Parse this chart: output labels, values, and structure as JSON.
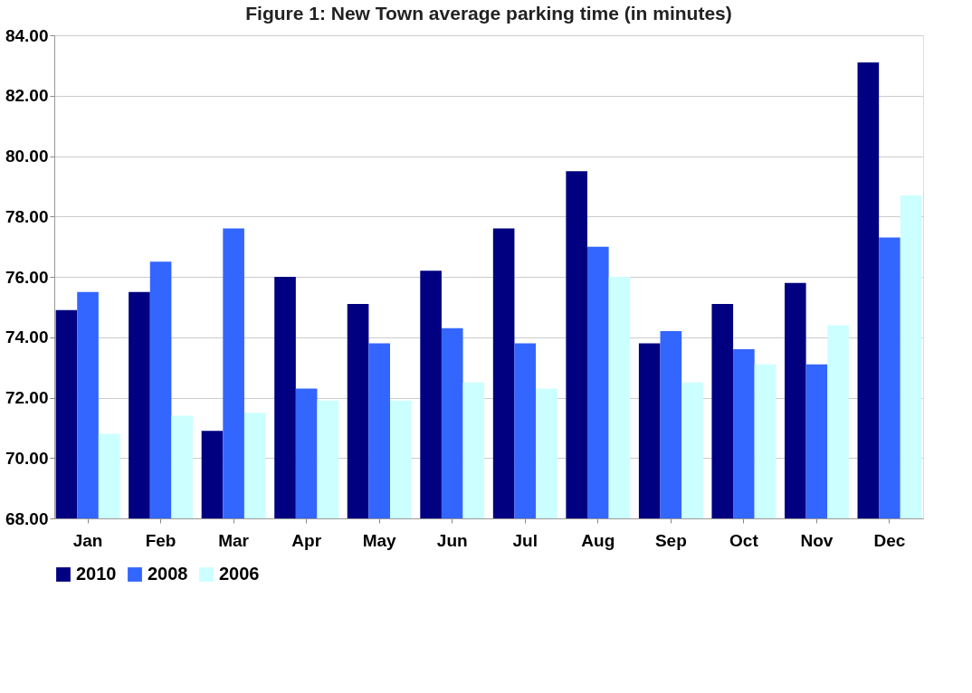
{
  "chart_data": {
    "type": "bar",
    "title": "Figure 1: New Town average parking time (in minutes)",
    "categories": [
      "Jan",
      "Feb",
      "Mar",
      "Apr",
      "May",
      "Jun",
      "Jul",
      "Aug",
      "Sep",
      "Oct",
      "Nov",
      "Dec"
    ],
    "series": [
      {
        "name": "2010",
        "color": "#000080",
        "values": [
          74.9,
          75.5,
          70.9,
          76.0,
          75.1,
          76.2,
          77.6,
          79.5,
          73.8,
          75.1,
          75.8,
          83.1
        ]
      },
      {
        "name": "2008",
        "color": "#3366ff",
        "values": [
          75.5,
          76.5,
          77.6,
          72.3,
          73.8,
          74.3,
          73.8,
          77.0,
          74.2,
          73.6,
          73.1,
          77.3
        ]
      },
      {
        "name": "2006",
        "color": "#ccffff",
        "values": [
          70.8,
          71.4,
          71.5,
          71.9,
          71.9,
          72.5,
          72.3,
          76.0,
          72.5,
          73.1,
          74.4,
          78.7
        ]
      }
    ],
    "ylim": [
      68,
      84
    ],
    "yticks": [
      {
        "value": 68,
        "label": "68.00"
      },
      {
        "value": 70,
        "label": "70.00"
      },
      {
        "value": 72,
        "label": "72.00"
      },
      {
        "value": 74,
        "label": "74.00"
      },
      {
        "value": 76,
        "label": "76.00"
      },
      {
        "value": 78,
        "label": "78.00"
      },
      {
        "value": 80,
        "label": "80.00"
      },
      {
        "value": 82,
        "label": "82.00"
      },
      {
        "value": 84,
        "label": "84.00"
      }
    ],
    "grid": "y",
    "legend": "bottom"
  }
}
